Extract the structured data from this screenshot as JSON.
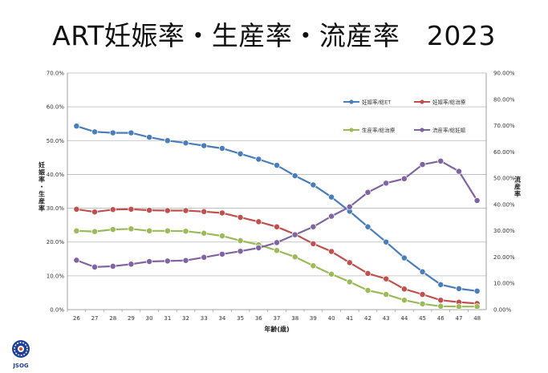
{
  "title": "ART妊娠率・生産率・流産率　2023",
  "logo_text": "JSOG",
  "chart_data": {
    "type": "line",
    "title": "ART妊娠率・生産率・流産率　2023",
    "xlabel": "年齢(歳)",
    "ylabel_left": "妊娠率・生産率",
    "ylabel_right": "流産率",
    "ylim_left": [
      0,
      70
    ],
    "ylim_right": [
      0,
      90
    ],
    "yticks_left": [
      "0.0%",
      "10.0%",
      "20.0%",
      "30.0%",
      "40.0%",
      "50.0%",
      "60.0%",
      "70.0%"
    ],
    "yticks_right": [
      "0.00%",
      "10.00%",
      "20.00%",
      "30.00%",
      "40.00%",
      "50.00%",
      "60.00%",
      "70.00%",
      "80.00%",
      "90.00%"
    ],
    "grid": true,
    "x": [
      26,
      27,
      28,
      29,
      30,
      31,
      32,
      33,
      34,
      35,
      36,
      37,
      38,
      39,
      40,
      41,
      42,
      43,
      44,
      45,
      46,
      47,
      48
    ],
    "series": [
      {
        "name": "妊娠率/総ET",
        "axis": "left",
        "color": "#4a7ebb",
        "values": [
          54.3,
          52.6,
          52.3,
          52.3,
          51.0,
          50.0,
          49.3,
          48.5,
          47.7,
          46.1,
          44.5,
          42.7,
          39.6,
          36.9,
          33.3,
          29.1,
          24.5,
          20.0,
          15.3,
          11.2,
          7.4,
          6.2,
          5.5
        ]
      },
      {
        "name": "妊娠率/総治療",
        "axis": "left",
        "color": "#c0504d",
        "values": [
          29.7,
          28.9,
          29.6,
          29.7,
          29.4,
          29.3,
          29.3,
          29.0,
          28.6,
          27.3,
          26.0,
          24.5,
          22.3,
          19.5,
          17.2,
          13.9,
          10.7,
          9.1,
          6.1,
          4.5,
          2.8,
          2.2,
          1.8
        ]
      },
      {
        "name": "生産率/総治療",
        "axis": "left",
        "color": "#9bbb59",
        "values": [
          23.3,
          23.1,
          23.7,
          23.9,
          23.3,
          23.3,
          23.2,
          22.6,
          21.8,
          20.4,
          19.2,
          17.5,
          15.6,
          13.0,
          10.5,
          8.2,
          5.7,
          4.5,
          2.8,
          1.7,
          1.0,
          0.9,
          0.9
        ]
      },
      {
        "name": "流産率/総妊娠",
        "axis": "right",
        "color": "#8064a2",
        "values": [
          18.8,
          16.2,
          16.5,
          17.3,
          18.3,
          18.5,
          18.7,
          19.9,
          21.1,
          22.2,
          23.5,
          25.5,
          28.5,
          31.5,
          35.5,
          39.1,
          44.6,
          48.1,
          49.8,
          55.2,
          56.5,
          52.6,
          41.5
        ]
      }
    ],
    "legend_placement": "top-right"
  }
}
